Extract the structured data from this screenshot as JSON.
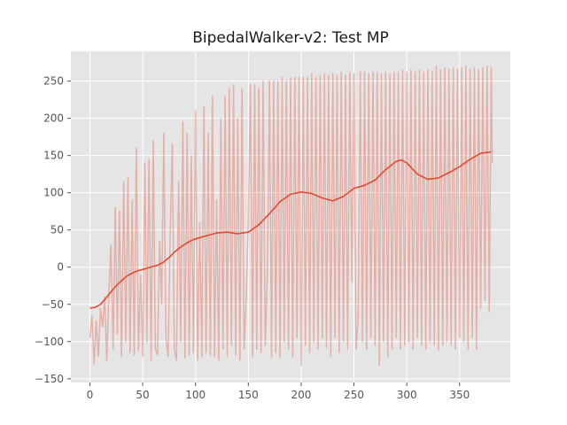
{
  "chart_data": {
    "type": "line",
    "title": "BipedalWalker-v2: Test MP",
    "xlabel": "",
    "ylabel": "",
    "xlim": [
      -18,
      398
    ],
    "ylim": [
      -155,
      290
    ],
    "xticks": [
      0,
      50,
      100,
      150,
      200,
      250,
      300,
      350
    ],
    "yticks": [
      -150,
      -100,
      -50,
      0,
      50,
      100,
      150,
      200,
      250
    ],
    "grid": true,
    "background": "#e5e5e5",
    "series": [
      {
        "style": "raw",
        "color": "#e24a33",
        "opacity": 0.35,
        "points": [
          [
            0,
            -95
          ],
          [
            2,
            -65
          ],
          [
            4,
            -130
          ],
          [
            6,
            -72
          ],
          [
            8,
            -120
          ],
          [
            10,
            -55
          ],
          [
            12,
            -80
          ],
          [
            14,
            -40
          ],
          [
            16,
            -125
          ],
          [
            18,
            -35
          ],
          [
            20,
            30
          ],
          [
            22,
            -110
          ],
          [
            24,
            80
          ],
          [
            26,
            -90
          ],
          [
            28,
            75
          ],
          [
            30,
            -120
          ],
          [
            32,
            115
          ],
          [
            34,
            -100
          ],
          [
            36,
            120
          ],
          [
            38,
            -115
          ],
          [
            40,
            90
          ],
          [
            42,
            -118
          ],
          [
            44,
            160
          ],
          [
            46,
            -112
          ],
          [
            48,
            -10
          ],
          [
            50,
            -120
          ],
          [
            52,
            140
          ],
          [
            54,
            -100
          ],
          [
            56,
            145
          ],
          [
            58,
            -125
          ],
          [
            60,
            170
          ],
          [
            62,
            -110
          ],
          [
            64,
            -118
          ],
          [
            66,
            35
          ],
          [
            68,
            -50
          ],
          [
            70,
            180
          ],
          [
            72,
            -95
          ],
          [
            74,
            -120
          ],
          [
            76,
            45
          ],
          [
            78,
            165
          ],
          [
            80,
            -110
          ],
          [
            82,
            -125
          ],
          [
            84,
            115
          ],
          [
            86,
            -100
          ],
          [
            88,
            195
          ],
          [
            90,
            -122
          ],
          [
            92,
            180
          ],
          [
            94,
            -118
          ],
          [
            96,
            150
          ],
          [
            98,
            -115
          ],
          [
            100,
            210
          ],
          [
            102,
            -125
          ],
          [
            104,
            60
          ],
          [
            106,
            -120
          ],
          [
            108,
            215
          ],
          [
            110,
            -115
          ],
          [
            112,
            180
          ],
          [
            114,
            -118
          ],
          [
            116,
            230
          ],
          [
            118,
            -120
          ],
          [
            120,
            90
          ],
          [
            122,
            -125
          ],
          [
            124,
            200
          ],
          [
            126,
            -110
          ],
          [
            128,
            230
          ],
          [
            130,
            -120
          ],
          [
            132,
            240
          ],
          [
            134,
            -105
          ],
          [
            136,
            245
          ],
          [
            138,
            -118
          ],
          [
            140,
            200
          ],
          [
            142,
            -125
          ],
          [
            144,
            240
          ],
          [
            146,
            -110
          ],
          [
            148,
            -40
          ],
          [
            150,
            60
          ],
          [
            152,
            245
          ],
          [
            154,
            -120
          ],
          [
            156,
            245
          ],
          [
            158,
            -110
          ],
          [
            160,
            240
          ],
          [
            162,
            -115
          ],
          [
            164,
            250
          ],
          [
            166,
            -105
          ],
          [
            168,
            -10
          ],
          [
            170,
            250
          ],
          [
            172,
            -120
          ],
          [
            174,
            250
          ],
          [
            176,
            -115
          ],
          [
            178,
            250
          ],
          [
            180,
            -122
          ],
          [
            182,
            255
          ],
          [
            184,
            -100
          ],
          [
            186,
            250
          ],
          [
            188,
            -110
          ],
          [
            190,
            255
          ],
          [
            192,
            -120
          ],
          [
            194,
            255
          ],
          [
            196,
            -95
          ],
          [
            198,
            255
          ],
          [
            200,
            -132
          ],
          [
            202,
            255
          ],
          [
            204,
            -105
          ],
          [
            206,
            255
          ],
          [
            208,
            -115
          ],
          [
            210,
            260
          ],
          [
            212,
            -100
          ],
          [
            214,
            255
          ],
          [
            216,
            -110
          ],
          [
            218,
            258
          ],
          [
            220,
            -95
          ],
          [
            222,
            260
          ],
          [
            224,
            -108
          ],
          [
            226,
            258
          ],
          [
            228,
            -120
          ],
          [
            230,
            260
          ],
          [
            232,
            -95
          ],
          [
            234,
            258
          ],
          [
            236,
            -115
          ],
          [
            238,
            262
          ],
          [
            240,
            -100
          ],
          [
            242,
            258
          ],
          [
            244,
            -110
          ],
          [
            246,
            262
          ],
          [
            248,
            -20
          ],
          [
            250,
            260
          ],
          [
            252,
            -110
          ],
          [
            254,
            -70
          ],
          [
            256,
            262
          ],
          [
            258,
            -100
          ],
          [
            260,
            262
          ],
          [
            262,
            -110
          ],
          [
            264,
            260
          ],
          [
            266,
            -95
          ],
          [
            268,
            262
          ],
          [
            270,
            -105
          ],
          [
            272,
            262
          ],
          [
            274,
            -132
          ],
          [
            276,
            260
          ],
          [
            278,
            -100
          ],
          [
            280,
            262
          ],
          [
            282,
            -120
          ],
          [
            284,
            260
          ],
          [
            286,
            -110
          ],
          [
            288,
            262
          ],
          [
            290,
            -95
          ],
          [
            292,
            262
          ],
          [
            294,
            -110
          ],
          [
            296,
            265
          ],
          [
            298,
            -105
          ],
          [
            300,
            262
          ],
          [
            302,
            -100
          ],
          [
            304,
            265
          ],
          [
            306,
            -110
          ],
          [
            308,
            262
          ],
          [
            310,
            -95
          ],
          [
            312,
            265
          ],
          [
            314,
            -105
          ],
          [
            316,
            262
          ],
          [
            318,
            -110
          ],
          [
            320,
            265
          ],
          [
            322,
            -100
          ],
          [
            324,
            262
          ],
          [
            326,
            -105
          ],
          [
            328,
            270
          ],
          [
            330,
            -112
          ],
          [
            332,
            265
          ],
          [
            334,
            -105
          ],
          [
            336,
            268
          ],
          [
            338,
            -100
          ],
          [
            340,
            266
          ],
          [
            342,
            -105
          ],
          [
            344,
            268
          ],
          [
            346,
            -110
          ],
          [
            348,
            266
          ],
          [
            350,
            -95
          ],
          [
            352,
            268
          ],
          [
            354,
            -100
          ],
          [
            356,
            270
          ],
          [
            358,
            -110
          ],
          [
            360,
            266
          ],
          [
            362,
            -95
          ],
          [
            364,
            268
          ],
          [
            366,
            -110
          ],
          [
            368,
            265
          ],
          [
            370,
            -55
          ],
          [
            372,
            268
          ],
          [
            374,
            -45
          ],
          [
            376,
            270
          ],
          [
            378,
            -60
          ],
          [
            380,
            268
          ],
          [
            381,
            140
          ]
        ]
      },
      {
        "style": "smoothed",
        "color": "#e24a33",
        "opacity": 1,
        "points": [
          [
            0,
            -55
          ],
          [
            5,
            -54
          ],
          [
            10,
            -50
          ],
          [
            15,
            -42
          ],
          [
            20,
            -33
          ],
          [
            25,
            -25
          ],
          [
            30,
            -18
          ],
          [
            35,
            -12
          ],
          [
            40,
            -8
          ],
          [
            45,
            -5
          ],
          [
            50,
            -3
          ],
          [
            55,
            -1
          ],
          [
            60,
            1
          ],
          [
            65,
            3
          ],
          [
            70,
            7
          ],
          [
            75,
            13
          ],
          [
            80,
            20
          ],
          [
            85,
            26
          ],
          [
            90,
            31
          ],
          [
            95,
            35
          ],
          [
            100,
            38
          ],
          [
            110,
            42
          ],
          [
            120,
            46
          ],
          [
            130,
            47
          ],
          [
            140,
            45
          ],
          [
            150,
            47
          ],
          [
            160,
            57
          ],
          [
            170,
            72
          ],
          [
            180,
            88
          ],
          [
            190,
            98
          ],
          [
            200,
            101
          ],
          [
            210,
            99
          ],
          [
            220,
            93
          ],
          [
            230,
            89
          ],
          [
            240,
            95
          ],
          [
            250,
            106
          ],
          [
            260,
            110
          ],
          [
            270,
            117
          ],
          [
            280,
            131
          ],
          [
            290,
            142
          ],
          [
            295,
            144
          ],
          [
            300,
            140
          ],
          [
            310,
            125
          ],
          [
            320,
            118
          ],
          [
            330,
            120
          ],
          [
            340,
            127
          ],
          [
            350,
            135
          ],
          [
            360,
            145
          ],
          [
            370,
            153
          ],
          [
            380,
            155
          ]
        ]
      }
    ]
  }
}
